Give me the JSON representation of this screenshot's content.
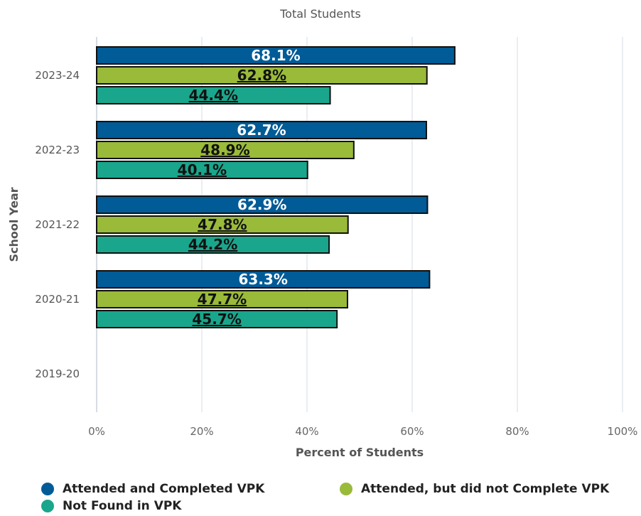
{
  "chart_data": {
    "type": "bar",
    "orientation": "horizontal",
    "title": "Total Students",
    "xlabel": "Percent of Students",
    "ylabel": "School Year",
    "categories": [
      "2023-24",
      "2022-23",
      "2021-22",
      "2020-21",
      "2019-20"
    ],
    "xlim": [
      0,
      100
    ],
    "xticks": [
      "0%",
      "20%",
      "40%",
      "60%",
      "80%",
      "100%"
    ],
    "grid": true,
    "legend_position": "bottom",
    "series": [
      {
        "name": "Attended and Completed VPK",
        "color": "#005b96",
        "label_color": "#ffffff",
        "values": [
          68.1,
          62.7,
          62.9,
          63.3,
          null
        ],
        "labels": [
          "68.1%",
          "62.7%",
          "62.9%",
          "63.3%",
          ""
        ]
      },
      {
        "name": "Attended, but did not Complete VPK",
        "color": "#9aba3a",
        "label_color": "#111111",
        "values": [
          62.8,
          48.9,
          47.8,
          47.7,
          null
        ],
        "labels": [
          "62.8%",
          "48.9%",
          "47.8%",
          "47.7%",
          ""
        ]
      },
      {
        "name": "Not Found in VPK",
        "color": "#1aa68c",
        "label_color": "#111111",
        "values": [
          44.4,
          40.1,
          44.2,
          45.7,
          null
        ],
        "labels": [
          "44.4%",
          "40.1%",
          "44.2%",
          "45.7%",
          ""
        ]
      }
    ]
  }
}
